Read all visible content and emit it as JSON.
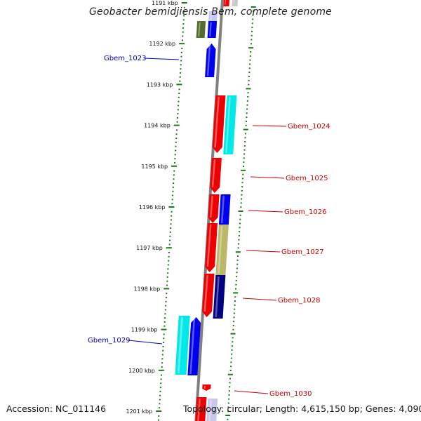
{
  "title": "Geobacter bemidjiensis Bem, complete genome",
  "footer": {
    "accession": "Accession: NC_011146",
    "topology": "Topology: circular; Length: 4,615,150 bp; Genes: 4,090"
  },
  "colors": {
    "backbone": "#808080",
    "tick": "#1a7a1a",
    "label_left": "#0000bb",
    "label_right": "#cc0000",
    "red": "#ee0000",
    "blue": "#0000ee",
    "cyan": "#00e8e8",
    "navy": "#000080",
    "khaki": "#bdb76b",
    "olive": "#556b2f"
  },
  "ticks": [
    {
      "label": "1191 kbp"
    },
    {
      "label": "1192 kbp"
    },
    {
      "label": "1193 kbp"
    },
    {
      "label": "1194 kbp"
    },
    {
      "label": "1195 kbp"
    },
    {
      "label": "1196 kbp"
    },
    {
      "label": "1197 kbp"
    },
    {
      "label": "1198 kbp"
    },
    {
      "label": "1199 kbp"
    },
    {
      "label": "1200 kbp"
    },
    {
      "label": "1201 kbp"
    }
  ],
  "genes": [
    {
      "label": "Gbem_1023",
      "side": "left"
    },
    {
      "label": "Gbem_1024",
      "side": "right"
    },
    {
      "label": "Gbem_1025",
      "side": "right"
    },
    {
      "label": "Gbem_1026",
      "side": "right"
    },
    {
      "label": "Gbem_1027",
      "side": "right"
    },
    {
      "label": "Gbem_1028",
      "side": "right"
    },
    {
      "label": "Gbem_1029",
      "side": "left"
    },
    {
      "label": "Gbem_1030",
      "side": "right"
    }
  ]
}
